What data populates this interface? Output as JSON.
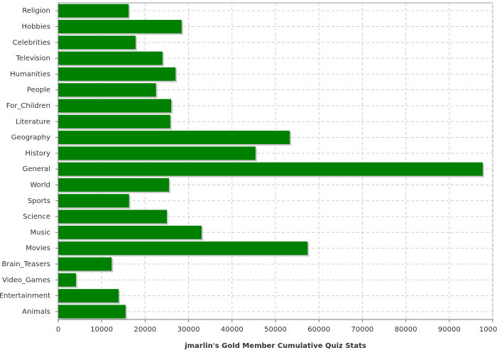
{
  "chart_data": {
    "type": "bar",
    "orientation": "horizontal",
    "x_label": "jmarlin's Gold Member Cumulative Quiz Stats",
    "categories": [
      "Religion",
      "Hobbies",
      "Celebrities",
      "Television",
      "Humanities",
      "People",
      "For_Children",
      "Literature",
      "Geography",
      "History",
      "General",
      "World",
      "Sports",
      "Science",
      "Music",
      "Movies",
      "Brain_Teasers",
      "Video_Games",
      "Entertainment",
      "Animals"
    ],
    "values": [
      16200,
      28400,
      17800,
      24000,
      27000,
      22500,
      26000,
      25800,
      53300,
      45400,
      97700,
      25500,
      16300,
      25000,
      33000,
      57400,
      12300,
      4100,
      13900,
      15500
    ],
    "color": "#008000",
    "xlim": [
      0,
      100000
    ],
    "xticks": [
      0,
      10000,
      20000,
      30000,
      40000,
      50000,
      60000,
      70000,
      80000,
      90000,
      100000
    ],
    "grid": true
  }
}
